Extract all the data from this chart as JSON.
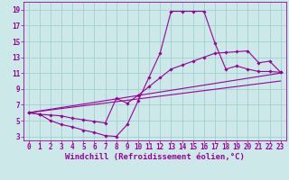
{
  "background_color": "#cce8e8",
  "line_color": "#990099",
  "marker": "D",
  "markersize": 1.8,
  "linewidth": 0.8,
  "xlabel": "Windchill (Refroidissement éolien,°C)",
  "xlabel_fontsize": 6.5,
  "tick_fontsize": 5.5,
  "xlim": [
    -0.5,
    23.5
  ],
  "ylim": [
    2.5,
    20
  ],
  "yticks": [
    3,
    5,
    7,
    9,
    11,
    13,
    15,
    17,
    19
  ],
  "xticks": [
    0,
    1,
    2,
    3,
    4,
    5,
    6,
    7,
    8,
    9,
    10,
    11,
    12,
    13,
    14,
    15,
    16,
    17,
    18,
    19,
    20,
    21,
    22,
    23
  ],
  "grid_color": "#99cccc",
  "series": [
    {
      "x": [
        0,
        1,
        2,
        3,
        4,
        5,
        6,
        7,
        8,
        9,
        10,
        11,
        12,
        13,
        14,
        15,
        16,
        17,
        18,
        19,
        20,
        21,
        22,
        23
      ],
      "y": [
        6.0,
        5.8,
        5.0,
        4.5,
        4.2,
        3.8,
        3.5,
        3.1,
        3.0,
        4.5,
        7.5,
        10.5,
        13.5,
        18.8,
        18.8,
        18.8,
        18.8,
        14.8,
        11.5,
        11.9,
        11.5,
        11.2,
        11.2,
        11.1
      ],
      "has_marker": true
    },
    {
      "x": [
        0,
        1,
        2,
        3,
        4,
        5,
        6,
        7,
        8,
        9,
        10,
        11,
        12,
        13,
        14,
        15,
        16,
        17,
        18,
        19,
        20,
        21,
        22,
        23
      ],
      "y": [
        6.0,
        5.8,
        5.7,
        5.6,
        5.3,
        5.1,
        4.9,
        4.7,
        7.8,
        7.2,
        8.2,
        9.3,
        10.4,
        11.5,
        12.0,
        12.5,
        13.0,
        13.5,
        13.6,
        13.7,
        13.8,
        12.3,
        12.5,
        11.1
      ],
      "has_marker": true
    },
    {
      "x": [
        0,
        23
      ],
      "y": [
        6.0,
        11.0
      ],
      "has_marker": false
    },
    {
      "x": [
        0,
        23
      ],
      "y": [
        6.0,
        10.0
      ],
      "has_marker": false
    }
  ]
}
